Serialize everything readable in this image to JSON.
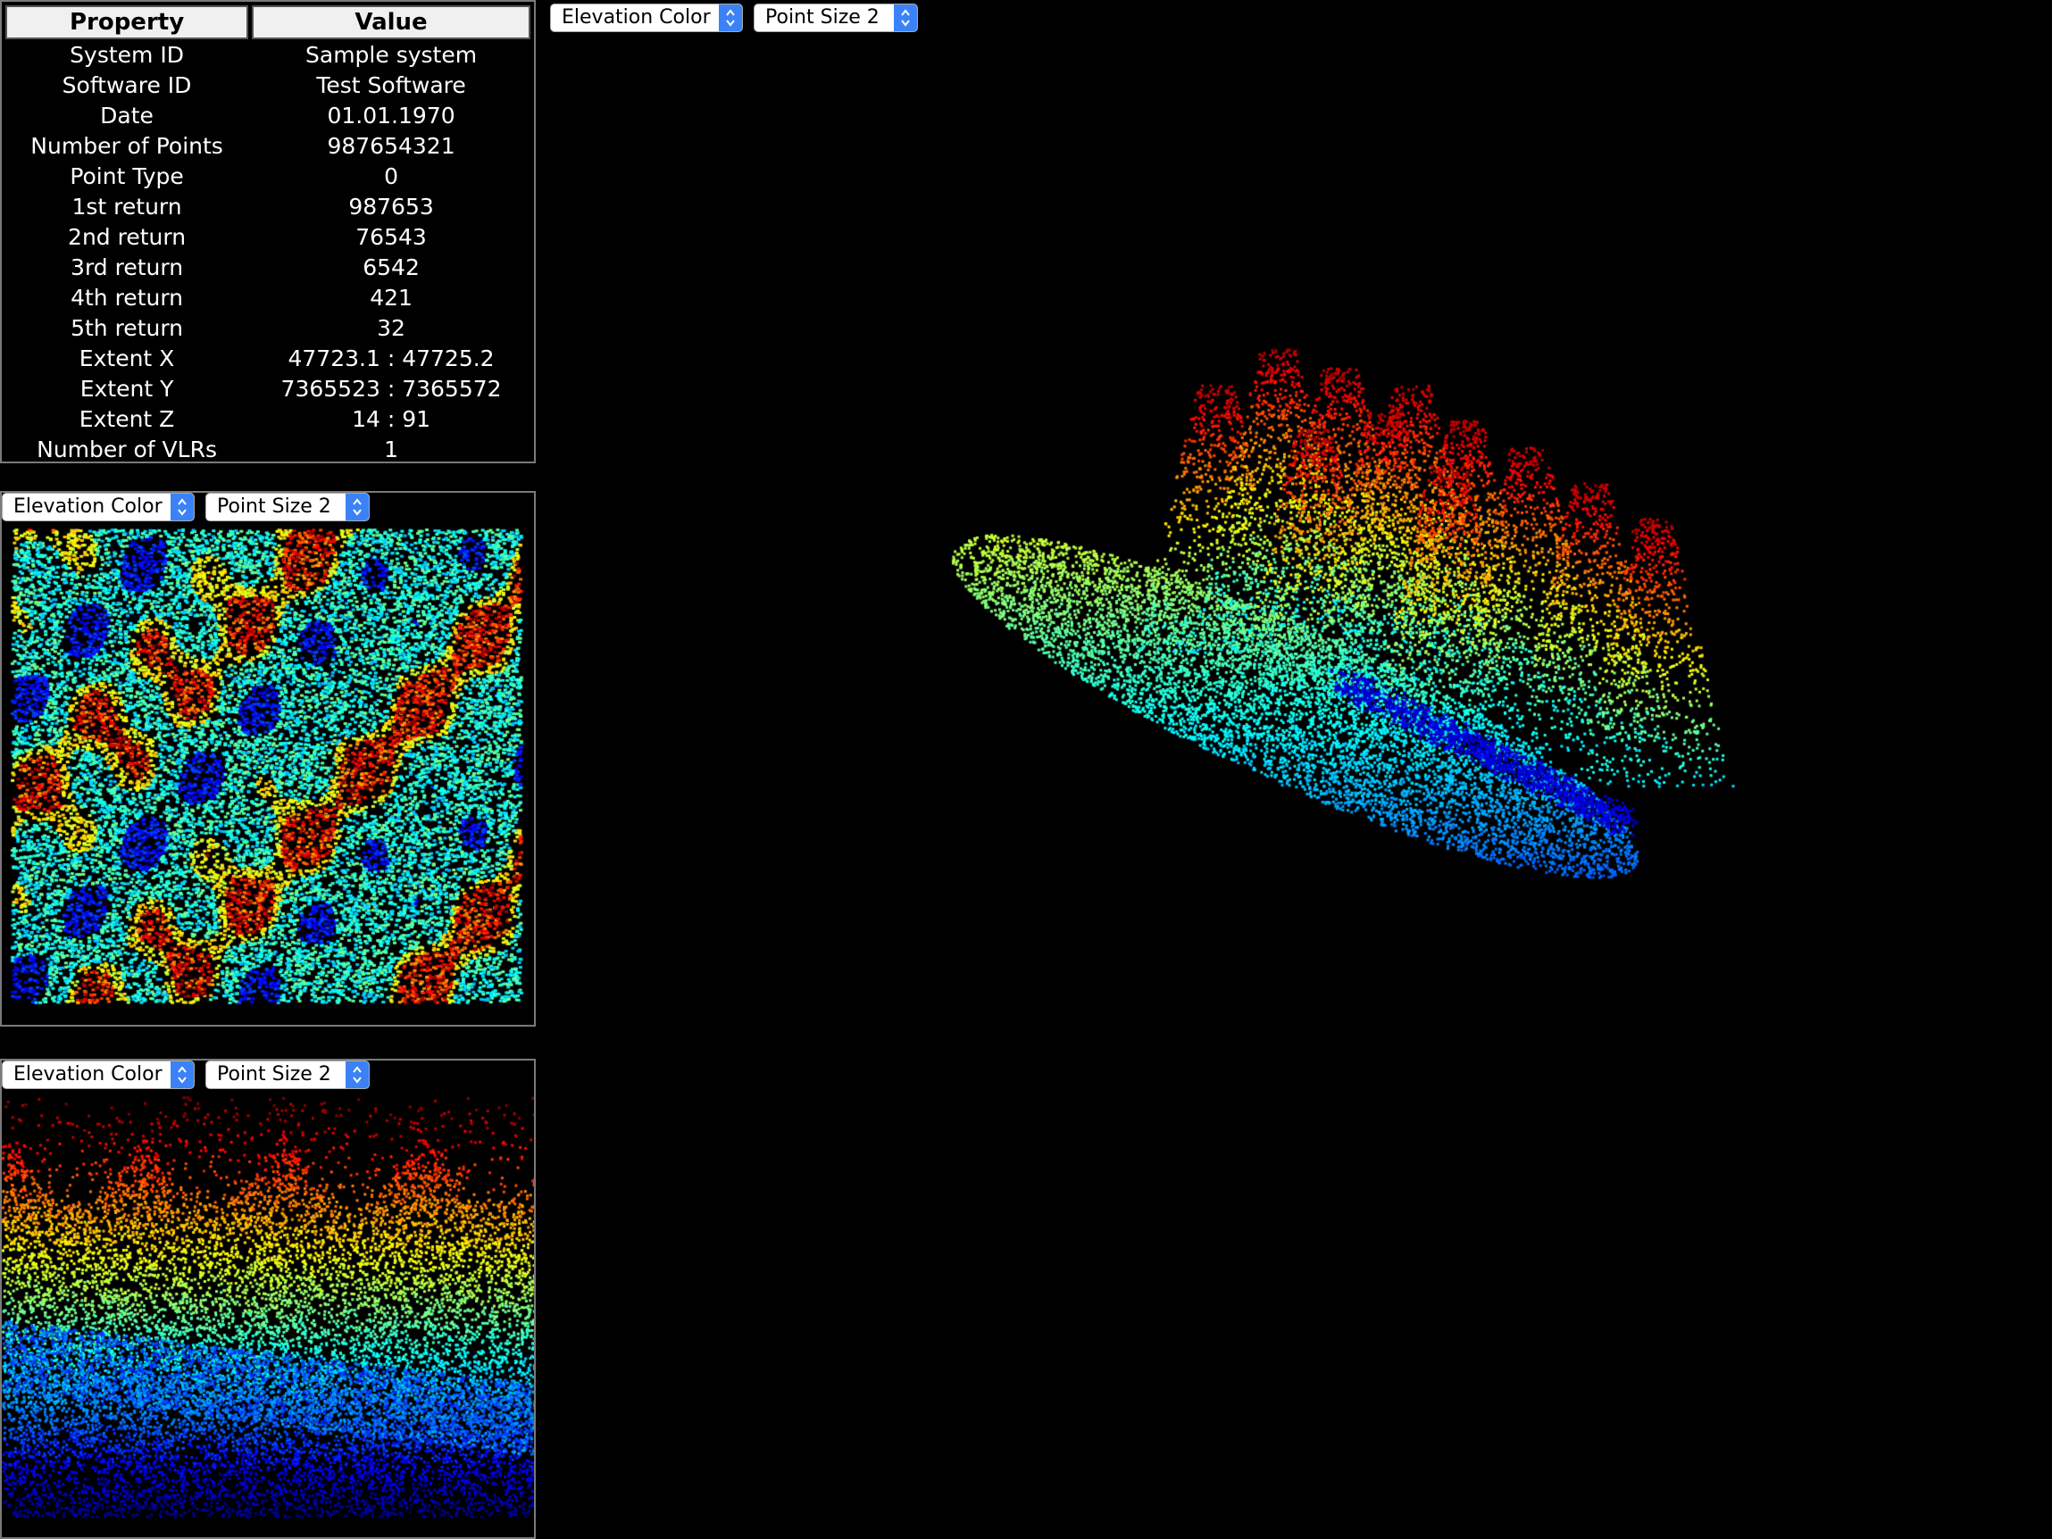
{
  "properties_table": {
    "header_property": "Property",
    "header_value": "Value",
    "rows": [
      {
        "property": "System ID",
        "value": "Sample system"
      },
      {
        "property": "Software ID",
        "value": "Test Software"
      },
      {
        "property": "Date",
        "value": "01.01.1970"
      },
      {
        "property": "Number of Points",
        "value": "987654321"
      },
      {
        "property": "Point Type",
        "value": "0"
      },
      {
        "property": "1st return",
        "value": "987653"
      },
      {
        "property": "2nd return",
        "value": "76543"
      },
      {
        "property": "3rd return",
        "value": "6542"
      },
      {
        "property": "4th return",
        "value": "421"
      },
      {
        "property": "5th return",
        "value": "32"
      },
      {
        "property": "Extent X",
        "value": "47723.1 : 47725.2"
      },
      {
        "property": "Extent Y",
        "value": "7365523 : 7365572"
      },
      {
        "property": "Extent Z",
        "value": "14 : 91"
      },
      {
        "property": "Number of VLRs",
        "value": "1"
      }
    ]
  },
  "views": {
    "main": {
      "color_mode": "Elevation Color",
      "point_size": "Point Size 2"
    },
    "top": {
      "color_mode": "Elevation Color",
      "point_size": "Point Size 2"
    },
    "side": {
      "color_mode": "Elevation Color",
      "point_size": "Point Size 2"
    }
  },
  "colors": {
    "background": "#000000",
    "panel_border": "#7a7a7a",
    "select_accent": "#3b82f6"
  }
}
